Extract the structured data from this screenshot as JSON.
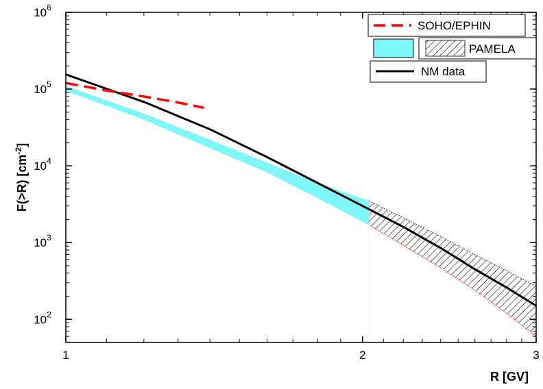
{
  "chart_data": {
    "type": "line",
    "xlabel": "R [GV]",
    "ylabel_main": "F(>R) [cm",
    "ylabel_exp": "-2",
    "ylabel_close": "]",
    "xscale": "log",
    "yscale": "log",
    "xlim": [
      1,
      3
    ],
    "ylim": [
      50,
      1000000
    ],
    "x_ticks": [
      {
        "value": 1,
        "label": "1"
      },
      {
        "value": 2,
        "label": "2"
      },
      {
        "value": 3,
        "label": "3"
      }
    ],
    "y_ticks": [
      {
        "value": 100,
        "base": "10",
        "exp": "2"
      },
      {
        "value": 1000,
        "base": "10",
        "exp": "3"
      },
      {
        "value": 10000,
        "base": "10",
        "exp": "4"
      },
      {
        "value": 100000,
        "base": "10",
        "exp": "5"
      },
      {
        "value": 1000000,
        "base": "10",
        "exp": "6"
      }
    ],
    "legend_position": "top-right",
    "series": [
      {
        "name": "SOHO/EPHIN",
        "kind": "dashed-line",
        "color": "#ff0000",
        "x": [
          1.0,
          1.1,
          1.2,
          1.3,
          1.38
        ],
        "y": [
          120000,
          96000,
          80000,
          67000,
          57000
        ]
      },
      {
        "name": "PAMELA",
        "kind": "band",
        "segments": [
          {
            "style": "fill",
            "color": "#7ff7f7",
            "x": [
              1.0,
              1.2,
              1.4,
              1.6,
              1.8,
              2.03
            ],
            "upper": [
              110000,
              48000,
              22000,
              11000,
              6000,
              3500
            ],
            "lower": [
              95000,
              40000,
              17000,
              8200,
              3800,
              1700
            ]
          },
          {
            "style": "hatch",
            "color": "#000000",
            "x": [
              2.03,
              2.2,
              2.4,
              2.6,
              2.8,
              3.0
            ],
            "upper": [
              3500,
              2100,
              1200,
              700,
              430,
              270
            ],
            "lower": [
              1700,
              920,
              470,
              240,
              120,
              60
            ]
          }
        ]
      },
      {
        "name": "NM data",
        "kind": "line",
        "color": "#000000",
        "x": [
          1.0,
          1.2,
          1.4,
          1.6,
          1.8,
          2.0,
          2.2,
          2.4,
          2.6,
          2.8,
          3.0
        ],
        "y": [
          155000,
          68000,
          30000,
          13000,
          6000,
          3000,
          1600,
          850,
          450,
          260,
          150
        ]
      }
    ]
  }
}
